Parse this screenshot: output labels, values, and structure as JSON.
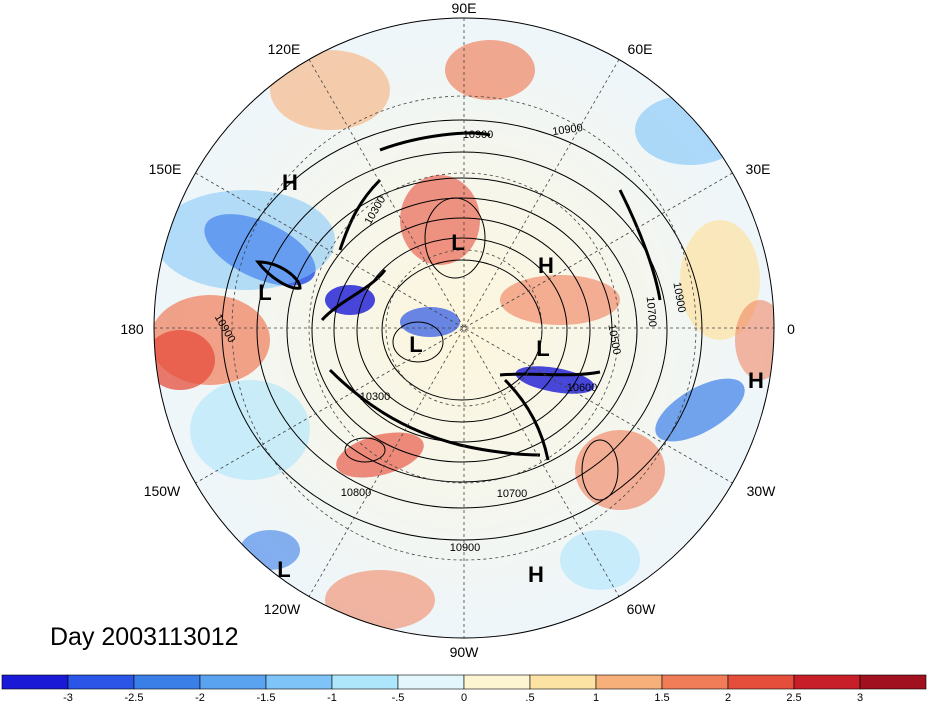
{
  "title": "Day 2003113012",
  "lon_labels": [
    {
      "label": "90E",
      "lon": 90
    },
    {
      "label": "60E",
      "lon": 60
    },
    {
      "label": "30E",
      "lon": 30
    },
    {
      "label": "0",
      "lon": 0
    },
    {
      "label": "30W",
      "lon": -30
    },
    {
      "label": "60W",
      "lon": -60
    },
    {
      "label": "90W",
      "lon": -90
    },
    {
      "label": "120W",
      "lon": -120
    },
    {
      "label": "150W",
      "lon": -150
    },
    {
      "label": "180",
      "lon": 180
    },
    {
      "label": "150E",
      "lon": 150
    },
    {
      "label": "120E",
      "lon": 120
    }
  ],
  "pressure_centers": [
    {
      "label": "H",
      "id": "h-siberia"
    },
    {
      "label": "L",
      "id": "l-north-pacific"
    },
    {
      "label": "L",
      "id": "l-eastern-siberia"
    },
    {
      "label": "H",
      "id": "h-europe"
    },
    {
      "label": "L",
      "id": "l-polar"
    },
    {
      "label": "L",
      "id": "l-greenland"
    },
    {
      "label": "H",
      "id": "h-azores"
    },
    {
      "label": "L",
      "id": "l-east-pacific"
    },
    {
      "label": "H",
      "id": "h-caribbean"
    }
  ],
  "contour_labels": [
    "10900",
    "10900",
    "10900",
    "10700",
    "10500",
    "10600",
    "10300",
    "10800",
    "10700",
    "10900",
    "10900",
    "10300"
  ],
  "colorbar": {
    "ticks": [
      "-3",
      "-2.5",
      "-2",
      "-1.5",
      "-1",
      "-.5",
      "0",
      ".5",
      "1",
      "1.5",
      "2",
      "2.5",
      "3"
    ],
    "colors": [
      "#1a1ad6",
      "#2a55e6",
      "#3a7fe8",
      "#5aa3f0",
      "#7ec4f8",
      "#aee6fb",
      "#e2f6fc",
      "#fdf5d2",
      "#fde3a3",
      "#f7b07a",
      "#f07d58",
      "#e64e3c",
      "#c81e2a",
      "#a0101e"
    ]
  }
}
